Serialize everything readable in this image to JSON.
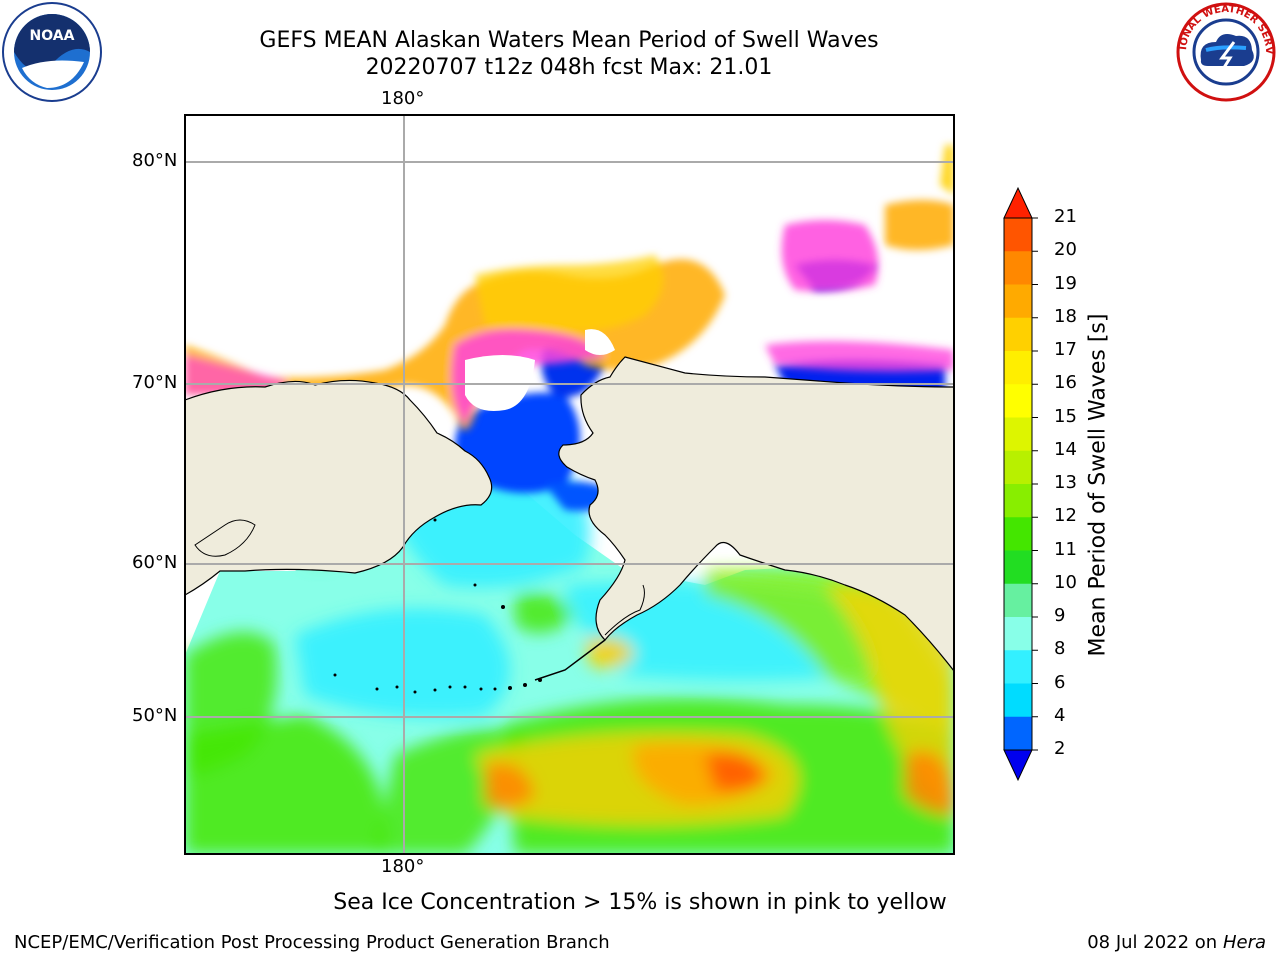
{
  "title": {
    "line1": "GEFS MEAN Alaskan Waters Mean Period of Swell Waves",
    "line2": "20220707 t12z 048h fcst   Max: 21.01"
  },
  "logos": {
    "left": {
      "icon": "noaa-logo",
      "text": "NOAA"
    },
    "right": {
      "icon": "nws-logo",
      "text": "NATIONAL WEATHER SERVICE"
    }
  },
  "map": {
    "lon_top_label": "180°",
    "lon_bottom_label": "180°",
    "lat_labels": [
      "80°N",
      "70°N",
      "60°N",
      "50°N"
    ],
    "land_color": "#efecdc",
    "grid_color": "#aaaaaa"
  },
  "colorbar": {
    "label": "Mean Period of Swell Waves [s]",
    "ticks": [
      "21",
      "20",
      "19",
      "18",
      "17",
      "16",
      "15",
      "14",
      "13",
      "12",
      "11",
      "10",
      "9",
      "8",
      "6",
      "4",
      "2"
    ],
    "colors": [
      "#ff2200",
      "#ff5500",
      "#ff8800",
      "#ffaa00",
      "#ffd000",
      "#ffee00",
      "#ffff00",
      "#ddf500",
      "#b8f000",
      "#88ee00",
      "#44e600",
      "#22dd22",
      "#66f0a0",
      "#88ffe8",
      "#33f0ff",
      "#00dcff",
      "#0066ff",
      "#0000ee"
    ]
  },
  "note": "Sea Ice Concentration > 15% is shown in pink to yellow",
  "footer": {
    "left": "NCEP/EMC/Verification Post Processing Product Generation Branch",
    "right_date": "08 Jul 2022 on ",
    "right_host": "Hera"
  }
}
